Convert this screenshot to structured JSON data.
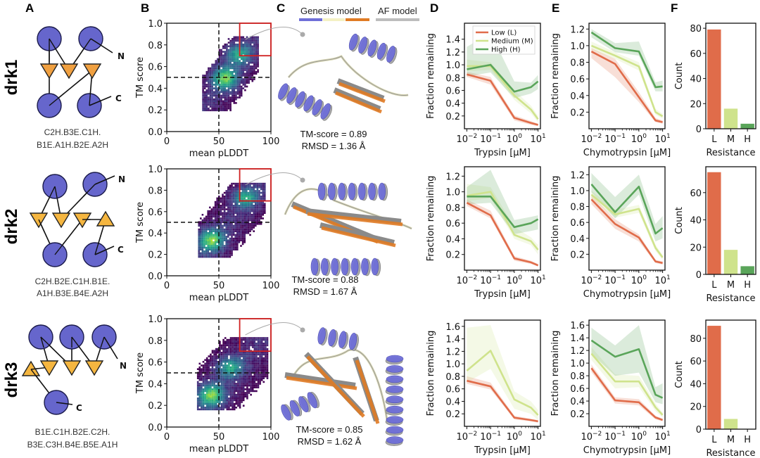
{
  "panel_letters": [
    "A",
    "B",
    "C",
    "D",
    "E",
    "F"
  ],
  "model_legend": {
    "genesis_label": "Genesis model",
    "af_label": "AF model",
    "genesis_colors": [
      "#6f6fd8",
      "#f4f1c4",
      "#e07b24"
    ],
    "af_color": "#bdbdbd"
  },
  "colors": {
    "low": "#e06c4a",
    "medium": "#cfe38c",
    "high": "#5aa55a",
    "node": "#6666cc",
    "strand": "#f0a030",
    "highlight_box": "#d02020"
  },
  "rows": [
    {
      "name": "drk1",
      "topology_code": [
        "C2H.B3E.C1H.",
        "B1E.A1H.B2E.A2H"
      ],
      "termini": [
        "N",
        "C"
      ],
      "structure": {
        "tm_score_text": "TM-score = 0.89",
        "rmsd_text": "RMSD = 1.36 Å"
      }
    },
    {
      "name": "drk2",
      "topology_code": [
        "C2H.B2E.C1H.B1E.",
        "A1H.B3E.B4E.A2H"
      ],
      "termini": [
        "N",
        "C"
      ],
      "structure": {
        "tm_score_text": "TM-score = 0.88",
        "rmsd_text": "RMSD = 1.67 Å"
      }
    },
    {
      "name": "drk3",
      "topology_code": [
        "B1E.C1H.B2E.C2H.",
        "B3E.C3H.B4E.B5E.A1H"
      ],
      "termini": [
        "N",
        "C"
      ],
      "structure": {
        "tm_score_text": "TM-score = 0.85",
        "rmsd_text": "RMSD = 1.62 Å"
      }
    }
  ],
  "chart_data": [
    {
      "panel": "B",
      "row": "drk1",
      "type": "heatmap",
      "title": "",
      "xlabel": "mean pLDDT",
      "ylabel": "TM score",
      "xlim": [
        0,
        100
      ],
      "ylim": [
        0,
        1.0
      ],
      "xticks": [
        0,
        50,
        100
      ],
      "yticks": [
        0.0,
        0.2,
        0.4,
        0.6,
        0.8,
        1.0
      ],
      "threshold_lines": {
        "x": 50,
        "y": 0.5
      },
      "highlight_box": {
        "x": [
          70,
          100
        ],
        "y": [
          0.7,
          1.0
        ]
      },
      "density_region": {
        "x_range": [
          34,
          88
        ],
        "y_range": [
          0.2,
          0.88
        ],
        "peak": [
          55,
          0.5
        ],
        "peak2": [
          68,
          0.72
        ]
      },
      "colormap": "viridis"
    },
    {
      "panel": "B",
      "row": "drk2",
      "type": "heatmap",
      "xlabel": "mean pLDDT",
      "ylabel": "TM score",
      "xlim": [
        0,
        100
      ],
      "ylim": [
        0,
        1.0
      ],
      "xticks": [
        0,
        50,
        100
      ],
      "yticks": [
        0.0,
        0.2,
        0.4,
        0.6,
        0.8,
        1.0
      ],
      "threshold_lines": {
        "x": 50,
        "y": 0.5
      },
      "highlight_box": {
        "x": [
          70,
          100
        ],
        "y": [
          0.7,
          1.0
        ]
      },
      "density_region": {
        "x_range": [
          30,
          95
        ],
        "y_range": [
          0.18,
          0.87
        ],
        "peak": [
          42,
          0.34
        ],
        "peak2": [
          75,
          0.74
        ]
      },
      "colormap": "viridis"
    },
    {
      "panel": "B",
      "row": "drk3",
      "type": "heatmap",
      "xlabel": "mean pLDDT",
      "ylabel": "TM score",
      "xlim": [
        0,
        100
      ],
      "ylim": [
        0,
        1.0
      ],
      "xticks": [
        0,
        50,
        100
      ],
      "yticks": [
        0.0,
        0.2,
        0.4,
        0.6,
        0.8,
        1.0
      ],
      "threshold_lines": {
        "x": 50,
        "y": 0.5
      },
      "highlight_box": {
        "x": [
          70,
          100
        ],
        "y": [
          0.7,
          1.0
        ]
      },
      "density_region": {
        "x_range": [
          29,
          97
        ],
        "y_range": [
          0.17,
          0.83
        ],
        "peak": [
          42,
          0.3
        ],
        "peak2": [
          60,
          0.56
        ]
      },
      "colormap": "viridis"
    },
    {
      "panel": "D",
      "row": "drk1",
      "type": "line",
      "xlabel": "Trypsin [μM]",
      "ylabel": "Fraction remaining",
      "xscale": "log",
      "x": [
        0.01,
        0.1,
        1,
        5,
        10
      ],
      "xticks": [
        "10^-2",
        "10^-1",
        "10^0",
        "10^1"
      ],
      "ylim": [
        0.0,
        1.65
      ],
      "yticks": [
        0.2,
        0.4,
        0.6,
        0.8,
        1.0,
        1.2,
        1.4
      ],
      "legend": {
        "entries": [
          "Low (L)",
          "Medium (M)",
          "High (H)"
        ],
        "position": "top-right"
      },
      "series": [
        {
          "name": "Low (L)",
          "values": [
            0.85,
            0.75,
            0.17,
            0.09,
            0.06
          ],
          "band": [
            [
              0.81,
              0.89
            ],
            [
              0.69,
              0.81
            ],
            [
              0.13,
              0.21
            ],
            [
              0.06,
              0.12
            ],
            [
              0.04,
              0.08
            ]
          ]
        },
        {
          "name": "Medium (M)",
          "values": [
            0.98,
            0.98,
            0.52,
            0.3,
            0.15
          ],
          "band": [
            [
              0.9,
              1.08
            ],
            [
              0.92,
              1.04
            ],
            [
              0.45,
              0.6
            ],
            [
              0.24,
              0.36
            ],
            [
              0.1,
              0.2
            ]
          ]
        },
        {
          "name": "High (H)",
          "values": [
            0.93,
            1.0,
            0.58,
            0.65,
            0.74
          ],
          "band": [
            [
              0.82,
              1.28
            ],
            [
              0.88,
              1.5
            ],
            [
              0.48,
              0.74
            ],
            [
              0.55,
              0.72
            ],
            [
              0.62,
              0.84
            ]
          ]
        }
      ]
    },
    {
      "panel": "E",
      "row": "drk1",
      "type": "line",
      "xlabel": "Chymotrypsin [μM]",
      "ylabel": "Fraction remaining",
      "xscale": "log",
      "x": [
        0.01,
        0.1,
        1,
        5,
        10
      ],
      "xticks": [
        "10^-2",
        "10^-1",
        "10^0",
        "10^1"
      ],
      "ylim": [
        0.0,
        1.27
      ],
      "yticks": [
        0.2,
        0.4,
        0.6,
        0.8,
        1.0,
        1.2
      ],
      "series": [
        {
          "name": "Low (L)",
          "values": [
            0.93,
            0.78,
            0.38,
            0.1,
            0.08
          ],
          "band": [
            [
              0.85,
              0.97
            ],
            [
              0.62,
              0.84
            ],
            [
              0.32,
              0.44
            ],
            [
              0.08,
              0.13
            ],
            [
              0.06,
              0.1
            ]
          ]
        },
        {
          "name": "Medium (M)",
          "values": [
            1.0,
            0.88,
            0.75,
            0.2,
            0.15
          ],
          "band": [
            [
              0.95,
              1.05
            ],
            [
              0.84,
              0.92
            ],
            [
              0.7,
              0.8
            ],
            [
              0.17,
              0.24
            ],
            [
              0.12,
              0.18
            ]
          ]
        },
        {
          "name": "High (H)",
          "values": [
            1.16,
            0.97,
            0.93,
            0.5,
            0.51
          ],
          "band": [
            [
              1.1,
              1.2
            ],
            [
              0.92,
              1.03
            ],
            [
              0.88,
              1.05
            ],
            [
              0.45,
              0.56
            ],
            [
              0.45,
              0.58
            ]
          ]
        }
      ]
    },
    {
      "panel": "F",
      "row": "drk1",
      "type": "bar",
      "xlabel": "Resistance",
      "ylabel": "Count",
      "categories": [
        "L",
        "M",
        "H"
      ],
      "values": [
        79,
        16,
        4
      ],
      "ylim": [
        0,
        84
      ],
      "yticks": [
        0,
        20,
        40,
        60,
        80
      ]
    },
    {
      "panel": "D",
      "row": "drk2",
      "type": "line",
      "xlabel": "Trypsin [μM]",
      "ylabel": "Fraction remaining",
      "xscale": "log",
      "x": [
        0.01,
        0.1,
        1,
        5,
        10
      ],
      "xticks": [
        "10^-2",
        "10^-1",
        "10^0",
        "10^1"
      ],
      "ylim": [
        0.0,
        1.32
      ],
      "yticks": [
        0.2,
        0.4,
        0.6,
        0.8,
        1.0,
        1.2
      ],
      "series": [
        {
          "name": "Low (L)",
          "values": [
            0.86,
            0.7,
            0.15,
            0.1,
            0.06
          ],
          "band": [
            [
              0.82,
              0.9
            ],
            [
              0.66,
              0.76
            ],
            [
              0.12,
              0.18
            ],
            [
              0.08,
              0.12
            ],
            [
              0.05,
              0.08
            ]
          ]
        },
        {
          "name": "Medium (M)",
          "values": [
            0.95,
            1.0,
            0.45,
            0.37,
            0.26
          ],
          "band": [
            [
              0.88,
              1.1
            ],
            [
              0.92,
              1.06
            ],
            [
              0.4,
              0.55
            ],
            [
              0.32,
              0.42
            ],
            [
              0.2,
              0.32
            ]
          ]
        },
        {
          "name": "High (H)",
          "values": [
            0.94,
            0.94,
            0.55,
            0.6,
            0.65
          ],
          "band": [
            [
              0.84,
              1.06
            ],
            [
              0.86,
              1.28
            ],
            [
              0.46,
              0.64
            ],
            [
              0.5,
              0.68
            ],
            [
              0.52,
              0.7
            ]
          ]
        }
      ]
    },
    {
      "panel": "E",
      "row": "drk2",
      "type": "line",
      "xlabel": "Chymotrypsin [μM]",
      "ylabel": "Fraction remaining",
      "xscale": "log",
      "x": [
        0.01,
        0.1,
        1,
        5,
        10
      ],
      "xticks": [
        "10^-2",
        "10^-1",
        "10^0",
        "10^1"
      ],
      "ylim": [
        0.0,
        1.3
      ],
      "yticks": [
        0.2,
        0.4,
        0.6,
        0.8,
        1.0,
        1.2
      ],
      "series": [
        {
          "name": "Low (L)",
          "values": [
            0.89,
            0.58,
            0.41,
            0.11,
            0.09
          ],
          "band": [
            [
              0.83,
              0.95
            ],
            [
              0.52,
              0.64
            ],
            [
              0.36,
              0.45
            ],
            [
              0.09,
              0.13
            ],
            [
              0.07,
              0.11
            ]
          ]
        },
        {
          "name": "Medium (M)",
          "values": [
            0.95,
            0.7,
            0.77,
            0.28,
            0.16
          ],
          "band": [
            [
              0.9,
              1.0
            ],
            [
              0.66,
              0.76
            ],
            [
              0.72,
              0.82
            ],
            [
              0.24,
              0.32
            ],
            [
              0.13,
              0.19
            ]
          ]
        },
        {
          "name": "High (H)",
          "values": [
            1.08,
            0.73,
            1.05,
            0.46,
            0.53
          ],
          "band": [
            [
              0.98,
              1.22
            ],
            [
              0.65,
              0.92
            ],
            [
              0.95,
              1.2
            ],
            [
              0.36,
              0.58
            ],
            [
              0.4,
              0.68
            ]
          ]
        }
      ]
    },
    {
      "panel": "F",
      "row": "drk2",
      "type": "bar",
      "xlabel": "Resistance",
      "ylabel": "Count",
      "categories": [
        "L",
        "M",
        "H"
      ],
      "values": [
        75,
        18,
        6
      ],
      "ylim": [
        0,
        79
      ],
      "yticks": [
        0,
        20,
        40,
        60
      ]
    },
    {
      "panel": "D",
      "row": "drk3",
      "type": "line",
      "xlabel": "Trypsin [μM]",
      "ylabel": "Fraction remaining",
      "xscale": "log",
      "x": [
        0.01,
        0.1,
        1,
        5,
        10
      ],
      "xticks": [
        "10^-2",
        "10^-1",
        "10^0",
        "10^1"
      ],
      "ylim": [
        0.0,
        1.7
      ],
      "yticks": [
        0.2,
        0.4,
        0.6,
        0.8,
        1.0,
        1.2,
        1.4,
        1.6
      ],
      "series": [
        {
          "name": "Low (L)",
          "values": [
            0.73,
            0.64,
            0.14,
            0.1,
            0.08
          ],
          "band": [
            [
              0.68,
              0.8
            ],
            [
              0.59,
              0.7
            ],
            [
              0.11,
              0.17
            ],
            [
              0.08,
              0.12
            ],
            [
              0.06,
              0.1
            ]
          ]
        },
        {
          "name": "Medium (M)",
          "values": [
            0.89,
            1.21,
            0.43,
            0.3,
            0.18
          ],
          "band": [
            [
              0.7,
              1.58
            ],
            [
              0.92,
              1.62
            ],
            [
              0.28,
              0.56
            ],
            [
              0.2,
              0.4
            ],
            [
              0.1,
              0.26
            ]
          ]
        }
      ]
    },
    {
      "panel": "E",
      "row": "drk3",
      "type": "line",
      "xlabel": "Chymotrypsin [μM]",
      "ylabel": "Fraction remaining",
      "xscale": "log",
      "x": [
        0.01,
        0.1,
        1,
        5,
        10
      ],
      "xticks": [
        "10^-2",
        "10^-1",
        "10^0",
        "10^1"
      ],
      "ylim": [
        0.0,
        1.68
      ],
      "yticks": [
        0.2,
        0.4,
        0.6,
        0.8,
        1.0,
        1.2,
        1.4,
        1.6
      ],
      "series": [
        {
          "name": "Low (L)",
          "values": [
            0.92,
            0.41,
            0.38,
            0.14,
            0.1
          ],
          "band": [
            [
              0.86,
              0.98
            ],
            [
              0.36,
              0.46
            ],
            [
              0.33,
              0.43
            ],
            [
              0.11,
              0.17
            ],
            [
              0.08,
              0.12
            ]
          ]
        },
        {
          "name": "Medium (M)",
          "values": [
            1.15,
            0.71,
            0.71,
            0.3,
            0.18
          ],
          "band": [
            [
              1.05,
              1.25
            ],
            [
              0.6,
              0.82
            ],
            [
              0.62,
              0.8
            ],
            [
              0.24,
              0.36
            ],
            [
              0.14,
              0.22
            ]
          ]
        },
        {
          "name": "High (H)",
          "values": [
            1.36,
            1.1,
            1.22,
            0.5,
            0.45
          ],
          "band": [
            [
              1.15,
              1.56
            ],
            [
              0.8,
              1.28
            ],
            [
              0.85,
              1.6
            ],
            [
              0.38,
              0.62
            ],
            [
              0.35,
              0.68
            ]
          ]
        }
      ]
    },
    {
      "panel": "F",
      "row": "drk3",
      "type": "bar",
      "xlabel": "Resistance",
      "ylabel": "Count",
      "categories": [
        "L",
        "M",
        "H"
      ],
      "values": [
        91,
        9,
        0
      ],
      "ylim": [
        0,
        96
      ],
      "yticks": [
        0,
        20,
        40,
        60,
        80
      ]
    }
  ]
}
